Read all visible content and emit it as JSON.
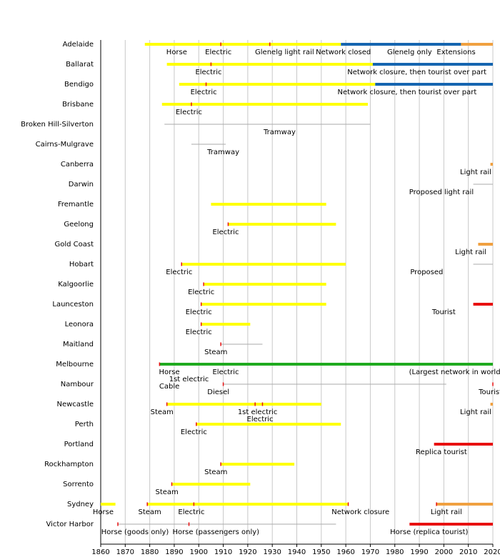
{
  "chart_data": {
    "type": "timeline",
    "xlim": [
      1860,
      2020
    ],
    "xticks": [
      1860,
      1870,
      1880,
      1890,
      1900,
      1910,
      1920,
      1930,
      1940,
      1950,
      1960,
      1970,
      1980,
      1990,
      2000,
      2010,
      2020
    ],
    "grid": true,
    "event_color": "#e81010",
    "rows": [
      {
        "name": "Adelaide",
        "bars": [
          {
            "start": 1878,
            "end": 1958,
            "color": "#ffff00"
          },
          {
            "start": 1958,
            "end": 2007,
            "color": "#1565b0"
          },
          {
            "start": 2007,
            "end": 2020,
            "color": "#f0a040"
          }
        ],
        "events": [
          1909,
          1929
        ],
        "labels": [
          {
            "text": "Horse",
            "at": 1891
          },
          {
            "text": "Electric",
            "at": 1908
          },
          {
            "text": "Glenelg light rail",
            "at": 1935
          },
          {
            "text": "Network closed",
            "at": 1959
          },
          {
            "text": "Glenelg only",
            "at": 1986
          },
          {
            "text": "Extensions",
            "at": 2005
          }
        ]
      },
      {
        "name": "Ballarat",
        "bars": [
          {
            "start": 1887,
            "end": 1971,
            "color": "#ffff00"
          },
          {
            "start": 1971,
            "end": 2020,
            "color": "#1565b0"
          }
        ],
        "events": [
          1905
        ],
        "labels": [
          {
            "text": "Electric",
            "at": 1904
          },
          {
            "text": "Network closure, then tourist over part",
            "at": 1989
          }
        ]
      },
      {
        "name": "Bendigo",
        "bars": [
          {
            "start": 1892,
            "end": 1972,
            "color": "#ffff00"
          },
          {
            "start": 1972,
            "end": 2020,
            "color": "#1565b0"
          }
        ],
        "events": [
          1903
        ],
        "labels": [
          {
            "text": "Electric",
            "at": 1902
          },
          {
            "text": "Network closure, then tourist over part",
            "at": 1985
          }
        ]
      },
      {
        "name": "Brisbane",
        "bars": [
          {
            "start": 1885,
            "end": 1969,
            "color": "#ffff00"
          }
        ],
        "events": [
          1897
        ],
        "labels": [
          {
            "text": "Electric",
            "at": 1896
          }
        ]
      },
      {
        "name": "Broken Hill-Silverton",
        "bars": [
          {
            "start": 1886,
            "end": 1970,
            "color": "#aaaaaa",
            "thin": true
          }
        ],
        "events": [],
        "labels": [
          {
            "text": "Tramway",
            "at": 1933
          }
        ]
      },
      {
        "name": "Cairns-Mulgrave",
        "bars": [
          {
            "start": 1897,
            "end": 1911,
            "color": "#aaaaaa",
            "thin": true
          }
        ],
        "events": [],
        "labels": [
          {
            "text": "Tramway",
            "at": 1910
          }
        ]
      },
      {
        "name": "Canberra",
        "bars": [
          {
            "start": 2019,
            "end": 2020,
            "color": "#f0a040"
          }
        ],
        "events": [],
        "labels": [
          {
            "text": "Light rail",
            "at": 2013
          }
        ]
      },
      {
        "name": "Darwin",
        "bars": [
          {
            "start": 2012,
            "end": 2020,
            "color": "#aaaaaa",
            "thin": true
          }
        ],
        "events": [],
        "labels": [
          {
            "text": "Proposed light rail",
            "at": 1999
          }
        ]
      },
      {
        "name": "Fremantle",
        "bars": [
          {
            "start": 1905,
            "end": 1952,
            "color": "#ffff00"
          }
        ],
        "events": [],
        "labels": []
      },
      {
        "name": "Geelong",
        "bars": [
          {
            "start": 1912,
            "end": 1956,
            "color": "#ffff00"
          }
        ],
        "events": [
          1912
        ],
        "labels": [
          {
            "text": "Electric",
            "at": 1911
          }
        ]
      },
      {
        "name": "Gold Coast",
        "bars": [
          {
            "start": 2014,
            "end": 2020,
            "color": "#f0a040"
          }
        ],
        "events": [],
        "labels": [
          {
            "text": "Light rail",
            "at": 2011
          }
        ]
      },
      {
        "name": "Hobart",
        "bars": [
          {
            "start": 1893,
            "end": 1960,
            "color": "#ffff00"
          },
          {
            "start": 2012,
            "end": 2020,
            "color": "#aaaaaa",
            "thin": true
          }
        ],
        "events": [
          1893
        ],
        "labels": [
          {
            "text": "Electric",
            "at": 1892
          },
          {
            "text": "Proposed",
            "at": 1993
          }
        ]
      },
      {
        "name": "Kalgoorlie",
        "bars": [
          {
            "start": 1902,
            "end": 1952,
            "color": "#ffff00"
          }
        ],
        "events": [
          1902
        ],
        "labels": [
          {
            "text": "Electric",
            "at": 1901
          }
        ]
      },
      {
        "name": "Launceston",
        "bars": [
          {
            "start": 1901,
            "end": 1952,
            "color": "#ffff00"
          },
          {
            "start": 2012,
            "end": 2020,
            "color": "#e81010"
          }
        ],
        "events": [
          1901
        ],
        "labels": [
          {
            "text": "Electric",
            "at": 1900
          },
          {
            "text": "Tourist",
            "at": 2000
          }
        ]
      },
      {
        "name": "Leonora",
        "bars": [
          {
            "start": 1901,
            "end": 1921,
            "color": "#ffff00"
          }
        ],
        "events": [
          1901
        ],
        "labels": [
          {
            "text": "Electric",
            "at": 1900
          }
        ]
      },
      {
        "name": "Maitland",
        "bars": [
          {
            "start": 1909,
            "end": 1926,
            "color": "#aaaaaa",
            "thin": true
          }
        ],
        "events": [
          1909
        ],
        "labels": [
          {
            "text": "Steam",
            "at": 1907
          }
        ]
      },
      {
        "name": "Melbourne",
        "bars": [
          {
            "start": 1884,
            "end": 2020,
            "color": "#1faa1f"
          }
        ],
        "events": [
          1884
        ],
        "labels": [
          {
            "text": "Horse",
            "at": 1888
          },
          {
            "text": "Electric",
            "at": 1911
          },
          {
            "text": "(Largest network in world)",
            "at": 2005
          },
          {
            "text": "1st electric",
            "at": 1896
          },
          {
            "text": "Cable",
            "at": 1888
          }
        ]
      },
      {
        "name": "Nambour",
        "bars": [
          {
            "start": 1910,
            "end": 2001,
            "color": "#aaaaaa",
            "thin": true
          }
        ],
        "events": [
          1910,
          2020
        ],
        "labels": [
          {
            "text": "Diesel",
            "at": 1908
          },
          {
            "text": "Tourist",
            "at": 2019
          }
        ]
      },
      {
        "name": "Newcastle",
        "bars": [
          {
            "start": 1887,
            "end": 1950,
            "color": "#ffff00"
          },
          {
            "start": 2019,
            "end": 2020,
            "color": "#f0a040"
          }
        ],
        "events": [
          1887,
          1923,
          1926
        ],
        "labels": [
          {
            "text": "Steam",
            "at": 1885
          },
          {
            "text": "1st electric",
            "at": 1924
          },
          {
            "text": "Electric",
            "at": 1925
          },
          {
            "text": "Light rail",
            "at": 2013
          }
        ]
      },
      {
        "name": "Perth",
        "bars": [
          {
            "start": 1899,
            "end": 1958,
            "color": "#ffff00"
          }
        ],
        "events": [
          1899
        ],
        "labels": [
          {
            "text": "Electric",
            "at": 1898
          }
        ]
      },
      {
        "name": "Portland",
        "bars": [
          {
            "start": 1996,
            "end": 2020,
            "color": "#e81010"
          }
        ],
        "events": [],
        "labels": [
          {
            "text": "Replica tourist",
            "at": 1999
          }
        ]
      },
      {
        "name": "Rockhampton",
        "bars": [
          {
            "start": 1909,
            "end": 1939,
            "color": "#ffff00"
          }
        ],
        "events": [
          1909
        ],
        "labels": [
          {
            "text": "Steam",
            "at": 1907
          }
        ]
      },
      {
        "name": "Sorrento",
        "bars": [
          {
            "start": 1889,
            "end": 1921,
            "color": "#ffff00"
          }
        ],
        "events": [
          1889
        ],
        "labels": [
          {
            "text": "Steam",
            "at": 1887
          }
        ]
      },
      {
        "name": "Sydney",
        "bars": [
          {
            "start": 1860,
            "end": 1866,
            "color": "#ffff00"
          },
          {
            "start": 1879,
            "end": 1961,
            "color": "#ffff00"
          },
          {
            "start": 1997,
            "end": 2020,
            "color": "#f0a040"
          }
        ],
        "events": [
          1879,
          1898,
          1961,
          1997
        ],
        "labels": [
          {
            "text": "Horse",
            "at": 1861
          },
          {
            "text": "Steam",
            "at": 1880
          },
          {
            "text": "Electric",
            "at": 1897
          },
          {
            "text": "Network closure",
            "at": 1966
          },
          {
            "text": "Light rail",
            "at": 2001
          }
        ]
      },
      {
        "name": "Victor Harbor",
        "bars": [
          {
            "start": 1867,
            "end": 1956,
            "color": "#aaaaaa",
            "thin": true
          },
          {
            "start": 1986,
            "end": 2020,
            "color": "#e81010"
          }
        ],
        "events": [
          1867,
          1896
        ],
        "labels": [
          {
            "text": "Horse (goods only)",
            "at": 1874
          },
          {
            "text": "Horse (passengers only)",
            "at": 1907
          },
          {
            "text": "Horse (replica tourist)",
            "at": 1994
          }
        ]
      }
    ]
  }
}
